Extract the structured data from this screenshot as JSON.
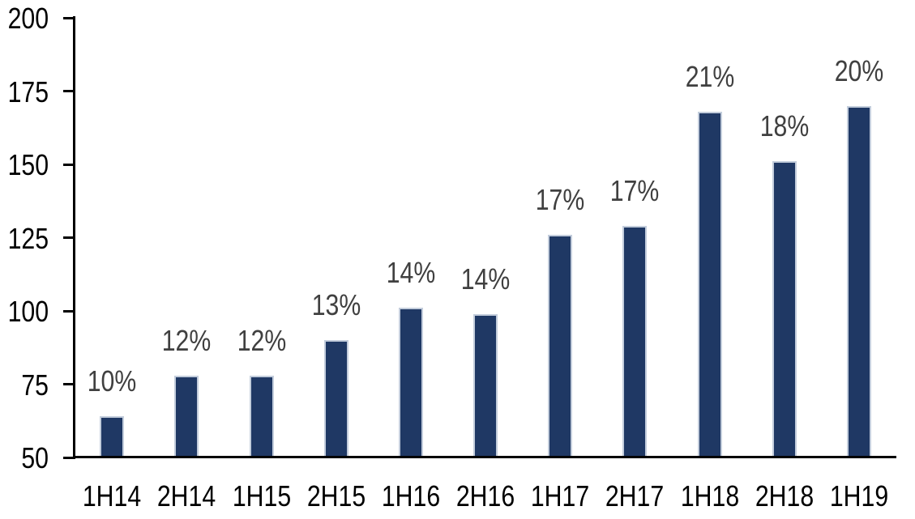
{
  "chart_data": {
    "type": "bar",
    "title": "",
    "xlabel": "",
    "ylabel": "",
    "categories": [
      "1H14",
      "2H14",
      "1H15",
      "2H15",
      "1H16",
      "2H16",
      "1H17",
      "2H17",
      "1H18",
      "2H18",
      "1H19"
    ],
    "series": [
      {
        "name": "value",
        "values": [
          64,
          78,
          78,
          90,
          101,
          99,
          126,
          129,
          168,
          151,
          170
        ],
        "data_labels": [
          "10%",
          "12%",
          "12%",
          "13%",
          "14%",
          "14%",
          "17%",
          "17%",
          "21%",
          "18%",
          "20%"
        ]
      }
    ],
    "ylim": [
      50,
      200
    ],
    "y_ticks": [
      200,
      175,
      150,
      125,
      100,
      75,
      50
    ],
    "grid": false,
    "legend_position": "none",
    "colors": {
      "bar_fill": "#1f3864",
      "bar_border": "#c3cddc",
      "data_label": "#404040",
      "axis_line": "#000000",
      "tick_label": "#000000",
      "background": "#ffffff"
    }
  }
}
